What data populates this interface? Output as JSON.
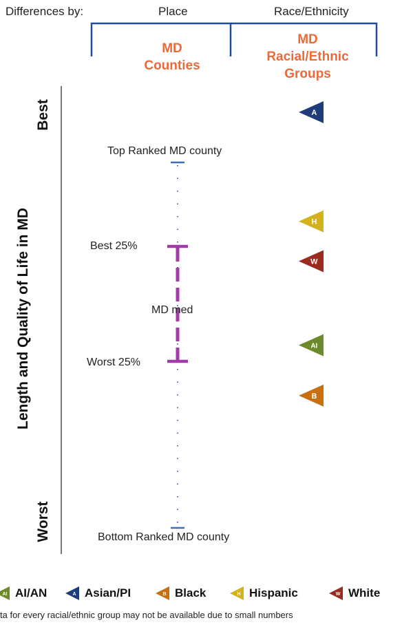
{
  "header": {
    "differences_label": "Differences by:",
    "place_label": "Place",
    "race_label": "Race/Ethnicity",
    "counties_title_line1": "MD",
    "counties_title_line2": "Counties",
    "groups_title_line1": "MD",
    "groups_title_line2": "Racial/Ethnic",
    "groups_title_line3": "Groups"
  },
  "axis": {
    "title": "Length and Quality of Life in MD",
    "best_label": "Best",
    "worst_label": "Worst"
  },
  "county_range": {
    "top_label": "Top Ranked MD county",
    "best25_label": "Best 25%",
    "median_label": "MD med",
    "worst25_label": "Worst 25%",
    "bottom_label": "Bottom Ranked MD county",
    "color": "#a23ba8",
    "end_color": "#3b6fb6"
  },
  "groups": [
    {
      "letter": "A",
      "name": "Asian/PI",
      "rank_fraction": 0.0,
      "color": "#1f3d7a"
    },
    {
      "letter": "H",
      "name": "Hispanic",
      "rank_fraction": 0.26,
      "color": "#d4b21e"
    },
    {
      "letter": "W",
      "name": "White",
      "rank_fraction": 0.355,
      "color": "#9c2a1e"
    },
    {
      "letter": "AI",
      "name": "AI/AN",
      "rank_fraction": 0.555,
      "color": "#6b8a2a"
    },
    {
      "letter": "B",
      "name": "Black",
      "rank_fraction": 0.675,
      "color": "#c8700f"
    }
  ],
  "legend": [
    {
      "letter": "AI",
      "label": "AI/AN",
      "color": "#6b8a2a"
    },
    {
      "letter": "A",
      "label": "Asian/PI",
      "color": "#1f3d7a"
    },
    {
      "letter": "B",
      "label": "Black",
      "color": "#c8700f"
    },
    {
      "letter": "H",
      "label": "Hispanic",
      "color": "#d4b21e"
    },
    {
      "letter": "W",
      "label": "White",
      "color": "#9c2a1e"
    }
  ],
  "footnote": "ta for every racial/ethnic group may not be available due to small numbers",
  "colors": {
    "bracket": "#1f4e9c",
    "accent": "#ea6a3a",
    "axis_line": "#666666"
  }
}
